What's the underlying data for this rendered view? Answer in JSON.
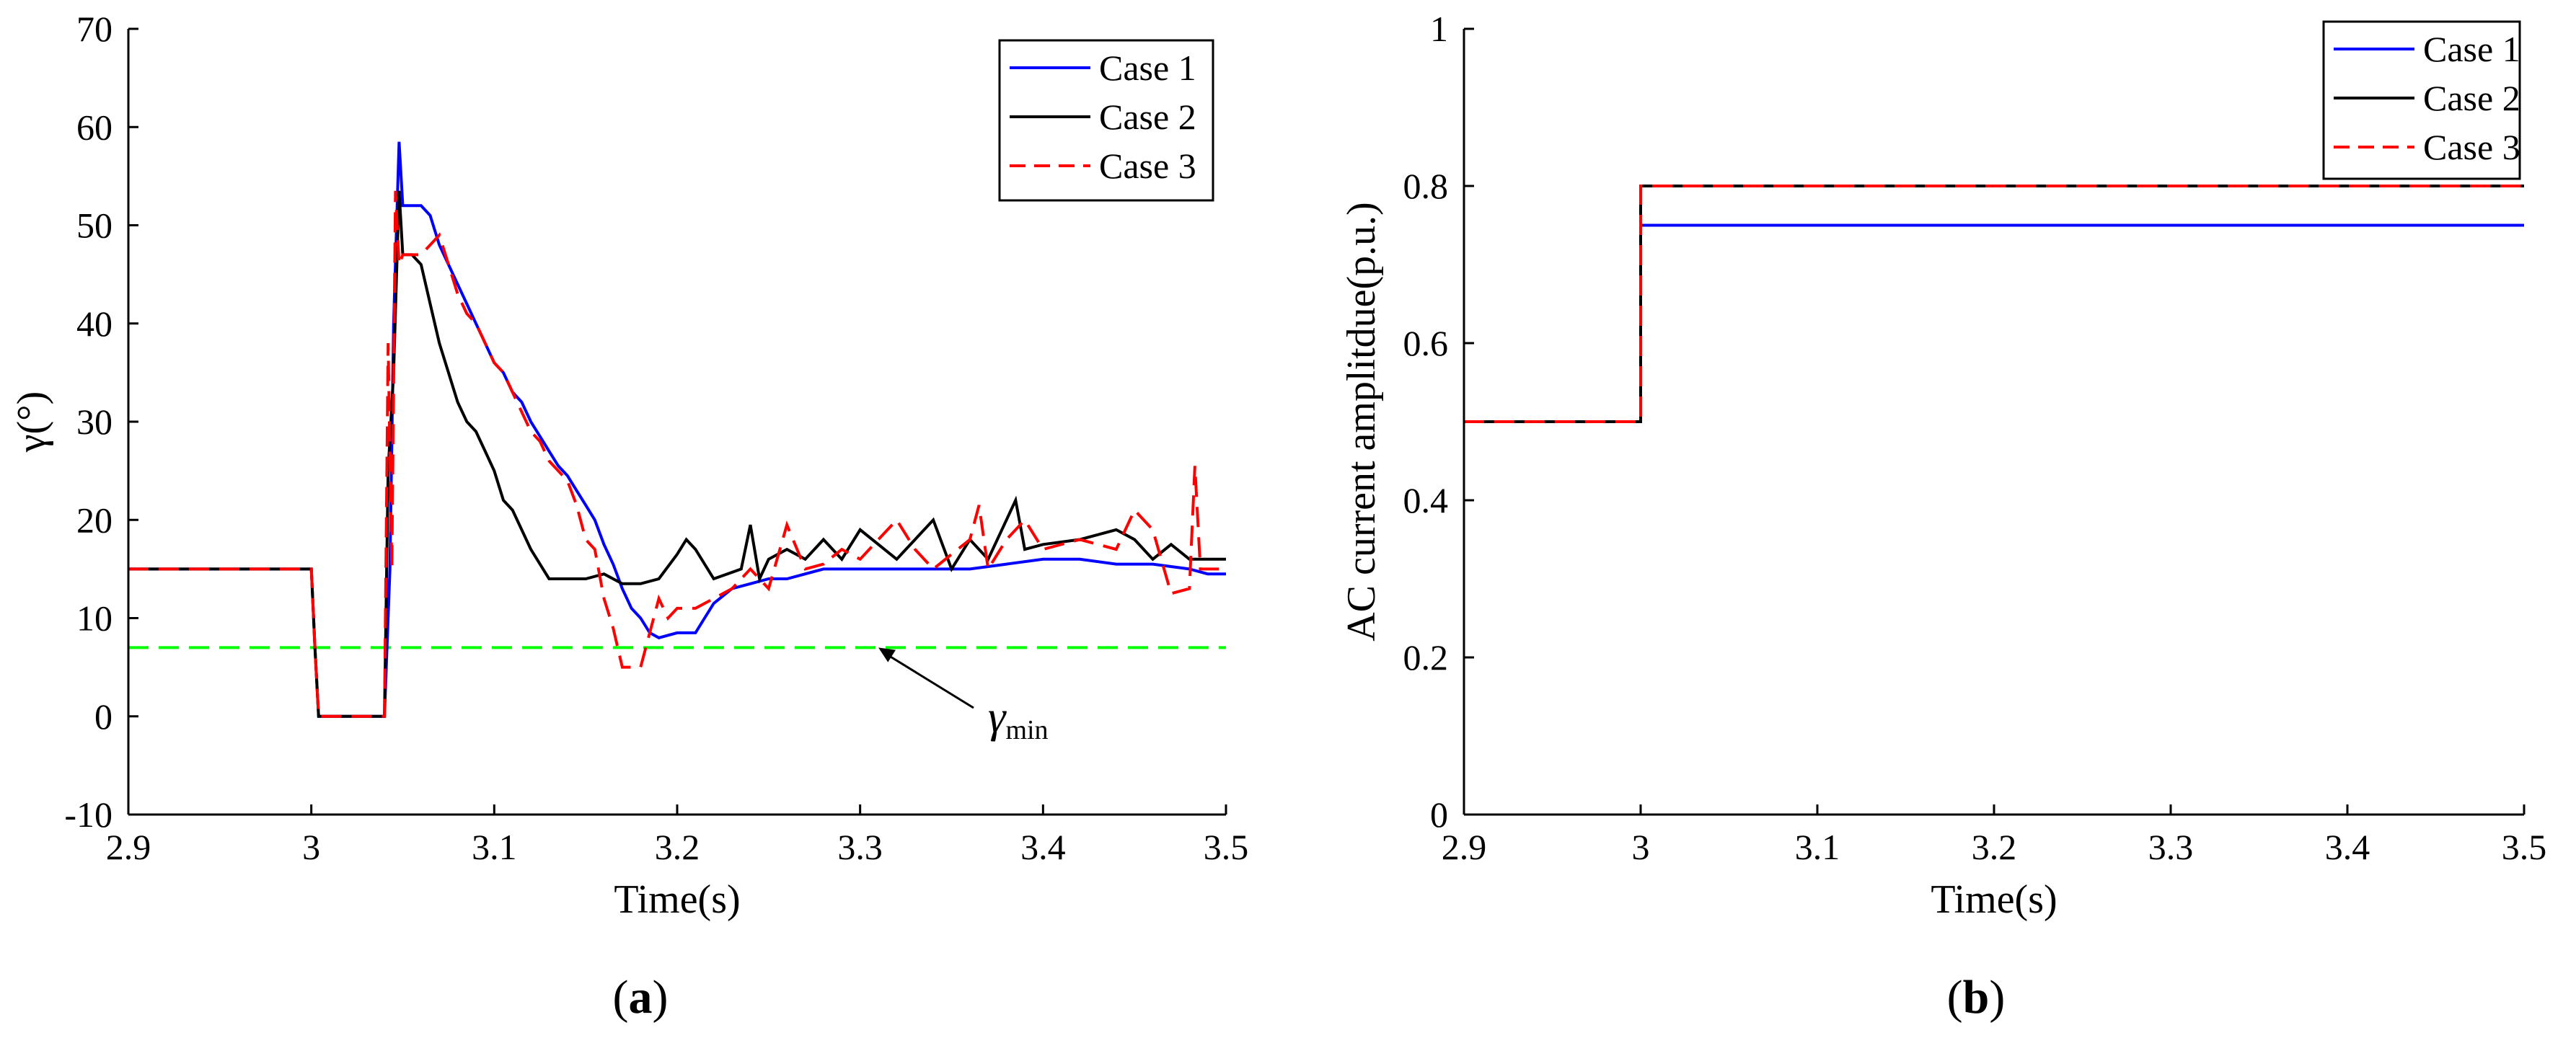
{
  "chart_data": [
    {
      "type": "line",
      "panel": "a",
      "caption_open": "(",
      "caption_letter": "a",
      "caption_close": ")",
      "xlabel": "Time(s)",
      "ylabel": "γ(°)",
      "xlim": [
        2.9,
        3.5
      ],
      "ylim": [
        -10,
        70
      ],
      "xticks": [
        2.9,
        3.0,
        3.1,
        3.2,
        3.3,
        3.4,
        3.5
      ],
      "xtick_labels": [
        "2.9",
        "3",
        "3.1",
        "3.2",
        "3.3",
        "3.4",
        "3.5"
      ],
      "yticks": [
        -10,
        0,
        10,
        20,
        30,
        40,
        50,
        60,
        70
      ],
      "ytick_labels": [
        "-10",
        "0",
        "10",
        "20",
        "30",
        "40",
        "50",
        "60",
        "70"
      ],
      "legend_position": "top-right",
      "annotation": {
        "symbol": "γ",
        "subscript": "min",
        "points_to": [
          3.31,
          7
        ]
      },
      "reference_line": {
        "name": "γ_min",
        "y": 7,
        "color": "#00ff00",
        "style": "dashed"
      },
      "series": [
        {
          "name": "Case 1",
          "color": "#0000ff",
          "style": "solid",
          "x": [
            2.9,
            3.0,
            3.002,
            3.004,
            3.04,
            3.043,
            3.045,
            3.048,
            3.05,
            3.052,
            3.06,
            3.065,
            3.07,
            3.075,
            3.08,
            3.085,
            3.09,
            3.095,
            3.1,
            3.105,
            3.11,
            3.115,
            3.12,
            3.125,
            3.13,
            3.135,
            3.14,
            3.145,
            3.15,
            3.155,
            3.16,
            3.165,
            3.17,
            3.175,
            3.18,
            3.185,
            3.19,
            3.2,
            3.21,
            3.215,
            3.22,
            3.23,
            3.24,
            3.25,
            3.26,
            3.27,
            3.28,
            3.3,
            3.32,
            3.34,
            3.36,
            3.38,
            3.4,
            3.42,
            3.44,
            3.46,
            3.48,
            3.49,
            3.5
          ],
          "y": [
            15,
            15,
            7,
            0,
            0,
            15,
            40,
            58.5,
            52,
            52,
            52,
            51,
            48,
            46,
            44,
            42,
            40,
            38,
            36,
            35,
            33,
            32,
            30,
            28.5,
            27,
            25.5,
            24.5,
            23,
            21.5,
            20,
            17.5,
            15.5,
            13,
            11,
            10,
            8.5,
            8,
            8.5,
            8.5,
            10,
            11.5,
            13,
            13.5,
            14,
            14,
            14.5,
            15,
            15,
            15,
            15,
            15,
            15.5,
            16,
            16,
            15.5,
            15.5,
            15,
            14.5,
            14.5
          ]
        },
        {
          "name": "Case 2",
          "color": "#000000",
          "style": "solid",
          "x": [
            2.9,
            3.0,
            3.002,
            3.004,
            3.04,
            3.042,
            3.045,
            3.048,
            3.05,
            3.055,
            3.06,
            3.065,
            3.07,
            3.075,
            3.08,
            3.085,
            3.09,
            3.095,
            3.1,
            3.105,
            3.11,
            3.12,
            3.13,
            3.14,
            3.15,
            3.16,
            3.17,
            3.18,
            3.19,
            3.2,
            3.205,
            3.21,
            3.22,
            3.235,
            3.24,
            3.245,
            3.25,
            3.26,
            3.27,
            3.28,
            3.29,
            3.3,
            3.32,
            3.34,
            3.35,
            3.36,
            3.37,
            3.38,
            3.385,
            3.39,
            3.4,
            3.42,
            3.44,
            3.45,
            3.46,
            3.47,
            3.48,
            3.5
          ],
          "y": [
            15,
            15,
            7,
            0,
            0,
            25,
            35,
            53.5,
            47,
            47,
            46,
            42,
            38,
            35,
            32,
            30,
            29,
            27,
            25,
            22,
            21,
            17,
            14,
            14,
            14,
            14.5,
            13.5,
            13.5,
            14,
            16.5,
            18,
            17,
            14,
            15,
            19.5,
            14,
            16,
            17,
            16,
            18,
            16,
            19,
            16,
            20,
            15,
            18,
            16,
            20,
            22,
            17,
            17.5,
            18,
            19,
            18,
            16,
            17.5,
            16,
            16
          ]
        },
        {
          "name": "Case 3",
          "color": "#ff0000",
          "style": "dashed",
          "x": [
            2.9,
            3.0,
            3.002,
            3.004,
            3.04,
            3.042,
            3.044,
            3.046,
            3.048,
            3.05,
            3.055,
            3.06,
            3.065,
            3.07,
            3.075,
            3.08,
            3.085,
            3.09,
            3.095,
            3.1,
            3.105,
            3.11,
            3.115,
            3.12,
            3.125,
            3.13,
            3.135,
            3.14,
            3.145,
            3.15,
            3.155,
            3.16,
            3.165,
            3.17,
            3.18,
            3.19,
            3.195,
            3.2,
            3.21,
            3.22,
            3.23,
            3.24,
            3.25,
            3.26,
            3.27,
            3.28,
            3.29,
            3.3,
            3.31,
            3.32,
            3.33,
            3.34,
            3.36,
            3.365,
            3.37,
            3.38,
            3.39,
            3.4,
            3.42,
            3.44,
            3.45,
            3.46,
            3.47,
            3.48,
            3.483,
            3.486,
            3.49,
            3.5
          ],
          "y": [
            15,
            15,
            7,
            0,
            0,
            38,
            15,
            53.5,
            46,
            47,
            47,
            47,
            48,
            49,
            46,
            43,
            41,
            40,
            38,
            36,
            35,
            33,
            31,
            29,
            28,
            26,
            25,
            24,
            21.5,
            18,
            17,
            12,
            9,
            5,
            5,
            12,
            10,
            11,
            11,
            12,
            13,
            15,
            13,
            19.5,
            15,
            15.5,
            17,
            16,
            18,
            20,
            17,
            15,
            18,
            21.5,
            15,
            18,
            20,
            17,
            18,
            17,
            21,
            19,
            12.5,
            13,
            25.5,
            15,
            15,
            15
          ]
        }
      ]
    },
    {
      "type": "line",
      "panel": "b",
      "caption_open": "(",
      "caption_letter": "b",
      "caption_close": ")",
      "xlabel": "Time(s)",
      "ylabel": "AC current amplitdue(p.u.)",
      "xlim": [
        2.9,
        3.5
      ],
      "ylim": [
        0,
        1
      ],
      "xticks": [
        2.9,
        3.0,
        3.1,
        3.2,
        3.3,
        3.4,
        3.5
      ],
      "xtick_labels": [
        "2.9",
        "3",
        "3.1",
        "3.2",
        "3.3",
        "3.4",
        "3.5"
      ],
      "yticks": [
        0,
        0.2,
        0.4,
        0.6,
        0.8,
        1
      ],
      "ytick_labels": [
        "0",
        "0.2",
        "0.4",
        "0.6",
        "0.8",
        "1"
      ],
      "legend_position": "top-right",
      "series": [
        {
          "name": "Case 1",
          "color": "#0000ff",
          "style": "solid",
          "x": [
            2.9,
            3.0,
            3.0,
            3.5
          ],
          "y": [
            0.5,
            0.5,
            0.75,
            0.75
          ]
        },
        {
          "name": "Case 2",
          "color": "#000000",
          "style": "solid",
          "x": [
            2.9,
            3.0,
            3.0,
            3.5
          ],
          "y": [
            0.5,
            0.5,
            0.8,
            0.8
          ]
        },
        {
          "name": "Case 3",
          "color": "#ff0000",
          "style": "dashed",
          "x": [
            2.9,
            3.0,
            3.0,
            3.5
          ],
          "y": [
            0.5,
            0.5,
            0.8,
            0.8
          ]
        }
      ]
    }
  ]
}
